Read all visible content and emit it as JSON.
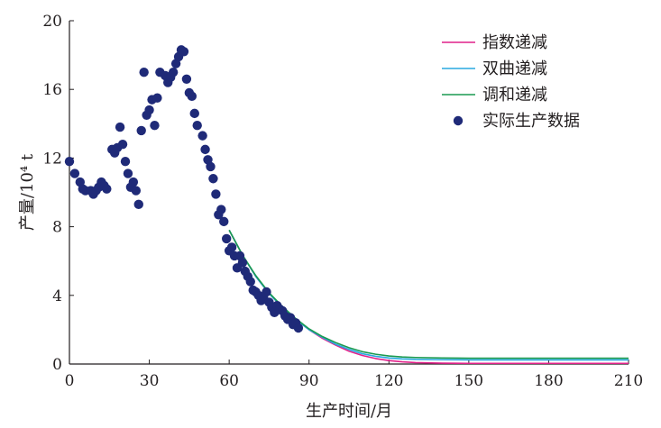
{
  "chart_data": {
    "type": "scatter",
    "title": "",
    "xlabel": "生产时间/月",
    "ylabel": "产量/10⁴ t",
    "xlim": [
      0,
      210
    ],
    "ylim": [
      0,
      20
    ],
    "xticks": [
      "0",
      "30",
      "60",
      "90",
      "120",
      "150",
      "180",
      "210"
    ],
    "yticks": [
      "0",
      "4",
      "8",
      "12",
      "16",
      "20"
    ],
    "grid": false,
    "legend_position": "top-right",
    "series": [
      {
        "name": "指数递减",
        "kind": "line",
        "color": "#e0218a",
        "x": [
          60,
          65,
          70,
          75,
          80,
          85,
          90,
          95,
          100,
          105,
          110,
          115,
          120,
          125,
          130,
          140,
          150,
          160,
          170,
          180,
          190,
          200,
          210
        ],
        "y": [
          7.8,
          6.35,
          5.1,
          4.1,
          3.3,
          2.6,
          2.0,
          1.5,
          1.1,
          0.75,
          0.5,
          0.32,
          0.2,
          0.13,
          0.08,
          0.05,
          0.04,
          0.04,
          0.04,
          0.04,
          0.04,
          0.04,
          0.04
        ]
      },
      {
        "name": "双曲递减",
        "kind": "line",
        "color": "#29a8e0",
        "x": [
          60,
          65,
          70,
          75,
          80,
          85,
          90,
          95,
          100,
          105,
          110,
          115,
          120,
          125,
          130,
          140,
          150,
          160,
          170,
          180,
          190,
          200,
          210
        ],
        "y": [
          7.8,
          6.35,
          5.1,
          4.1,
          3.3,
          2.6,
          2.0,
          1.55,
          1.15,
          0.85,
          0.6,
          0.45,
          0.35,
          0.3,
          0.27,
          0.25,
          0.24,
          0.24,
          0.24,
          0.24,
          0.24,
          0.24,
          0.24
        ]
      },
      {
        "name": "调和递减",
        "kind": "line",
        "color": "#1a9a50",
        "x": [
          60,
          65,
          70,
          75,
          80,
          85,
          90,
          95,
          100,
          105,
          110,
          115,
          120,
          125,
          130,
          140,
          150,
          160,
          170,
          180,
          190,
          200,
          210
        ],
        "y": [
          7.8,
          6.35,
          5.15,
          4.15,
          3.35,
          2.65,
          2.05,
          1.6,
          1.25,
          0.95,
          0.72,
          0.57,
          0.47,
          0.41,
          0.38,
          0.35,
          0.34,
          0.34,
          0.34,
          0.34,
          0.34,
          0.34,
          0.34
        ]
      },
      {
        "name": "实际生产数据",
        "kind": "scatter",
        "color": "#1f2a78",
        "x": [
          0,
          2,
          4,
          5,
          6,
          8,
          9,
          10,
          11,
          12,
          13,
          14,
          16,
          17,
          18,
          19,
          20,
          21,
          22,
          23,
          24,
          25,
          26,
          27,
          28,
          29,
          30,
          31,
          32,
          33,
          34,
          36,
          37,
          38,
          39,
          40,
          41,
          42,
          43,
          44,
          45,
          46,
          47,
          48,
          50,
          51,
          52,
          53,
          54,
          55,
          56,
          57,
          58,
          59,
          60,
          61,
          62,
          63,
          64,
          65,
          66,
          67,
          68,
          69,
          70,
          71,
          72,
          73,
          74,
          75,
          76,
          77,
          78,
          79,
          80,
          81,
          82,
          83,
          84,
          85,
          86
        ],
        "y": [
          11.8,
          11.1,
          10.6,
          10.2,
          10.1,
          10.1,
          9.9,
          10.1,
          10.3,
          10.6,
          10.4,
          10.2,
          12.5,
          12.3,
          12.6,
          13.8,
          12.8,
          11.8,
          11.1,
          10.3,
          10.6,
          10.1,
          9.3,
          13.6,
          17.0,
          14.5,
          14.8,
          15.4,
          13.9,
          15.5,
          17.0,
          16.8,
          16.4,
          16.7,
          17.0,
          17.5,
          17.9,
          18.3,
          18.2,
          16.6,
          15.8,
          15.6,
          14.6,
          13.9,
          13.3,
          12.5,
          11.9,
          11.5,
          10.8,
          9.9,
          8.7,
          9.0,
          8.3,
          7.3,
          6.6,
          6.8,
          6.3,
          5.6,
          6.3,
          5.9,
          5.4,
          5.1,
          4.8,
          4.3,
          4.2,
          4.0,
          3.7,
          3.8,
          4.2,
          3.6,
          3.3,
          3.0,
          3.4,
          3.2,
          3.1,
          2.8,
          2.6,
          2.7,
          2.3,
          2.4,
          2.1
        ]
      }
    ]
  }
}
